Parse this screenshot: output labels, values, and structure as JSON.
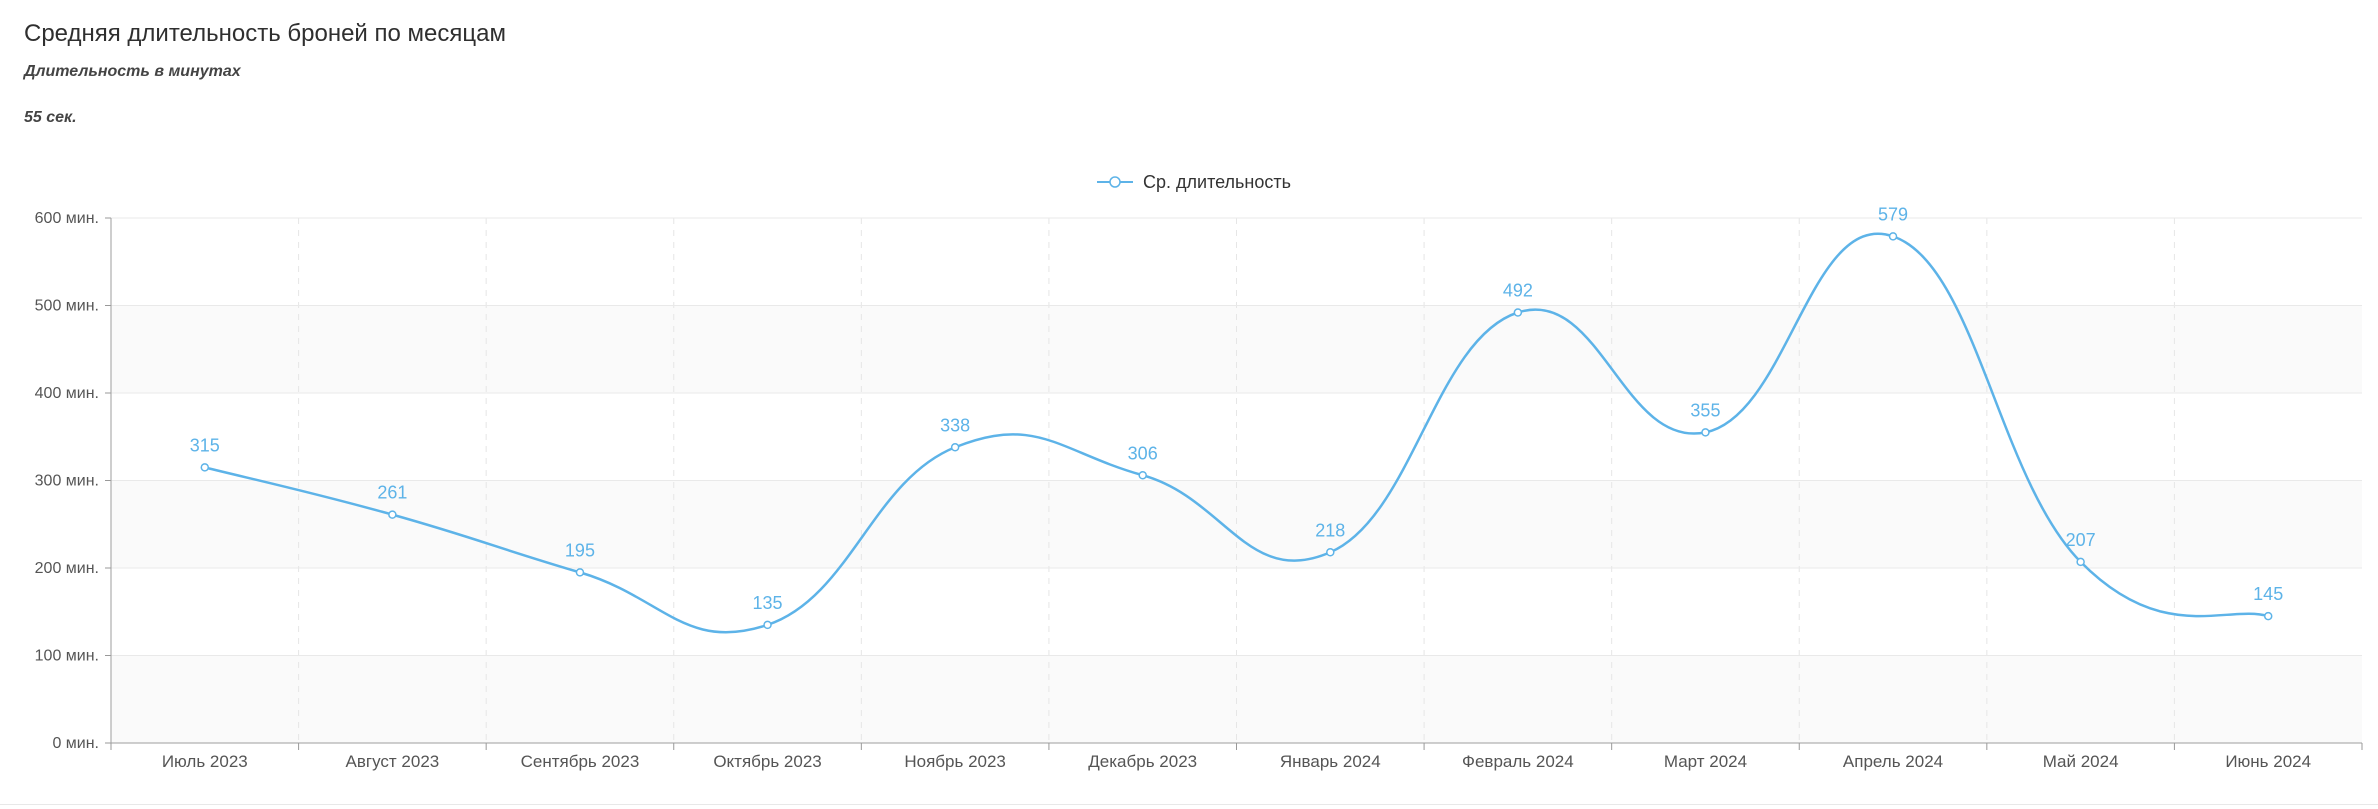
{
  "header": {
    "title": "Средняя длительность броней по месяцам",
    "subtitle": "Длительность в минутах",
    "note": "55 сек."
  },
  "chart_data": {
    "type": "line",
    "categories": [
      "Июль 2023",
      "Август 2023",
      "Сентябрь 2023",
      "Октябрь 2023",
      "Ноябрь 2023",
      "Декабрь 2023",
      "Январь 2024",
      "Февраль 2024",
      "Март 2024",
      "Апрель 2024",
      "Май 2024",
      "Июнь 2024"
    ],
    "series": [
      {
        "name": "Ср. длительность",
        "values": [
          315,
          261,
          195,
          135,
          338,
          306,
          218,
          492,
          355,
          579,
          207,
          145
        ],
        "color": "#5db3e8"
      }
    ],
    "y_ticks": [
      0,
      100,
      200,
      300,
      400,
      500,
      600
    ],
    "y_tick_labels": [
      "0 мин.",
      "100 мин.",
      "200 мин.",
      "300 мин.",
      "400 мин.",
      "500 мин.",
      "600 мин."
    ],
    "ylim": [
      0,
      600
    ],
    "grid": true,
    "legend_position": "top-center",
    "data_labels": true
  }
}
